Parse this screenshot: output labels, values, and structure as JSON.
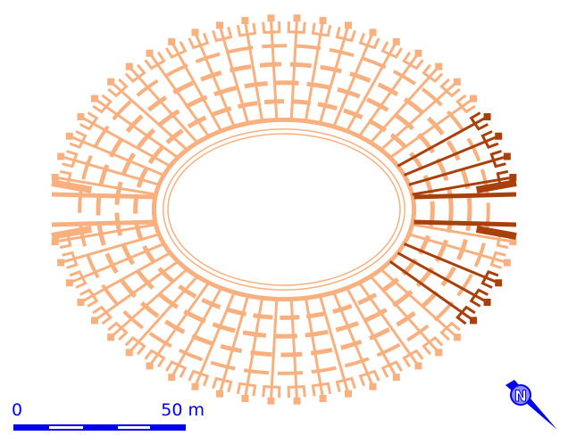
{
  "scale_bar": {
    "start_label": "0",
    "end_label": "50 m"
  },
  "north_arrow": {
    "label": "N"
  }
}
